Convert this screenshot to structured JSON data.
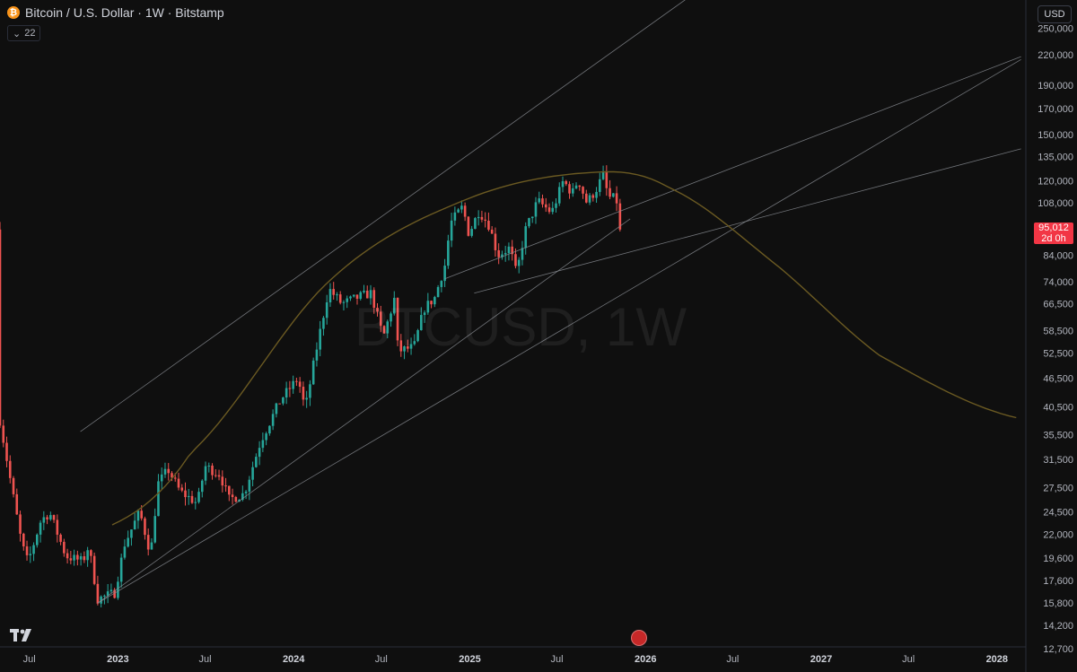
{
  "header": {
    "title": "Bitcoin / U.S. Dollar · 1W · Bitstamp",
    "indicator_count": "22",
    "currency": "USD",
    "coin_symbol": "₿"
  },
  "watermark": "BTCUSD, 1W",
  "last_price": {
    "price": "95,012",
    "countdown": "2d 0h"
  },
  "colors": {
    "background": "#0f0f0f",
    "up": "#26a69a",
    "down": "#ef5350",
    "arc": "#6b5a22",
    "trendline": "#8a8d94",
    "price_tag": "#f23645"
  },
  "chart_data": {
    "type": "candlestick",
    "title": "Bitcoin / U.S. Dollar · 1W · Bitstamp",
    "y_scale": "log",
    "ylim": [
      12000,
      280000
    ],
    "xlim": [
      "2022-05-01",
      "2028-03-01"
    ],
    "grid": false,
    "y_ticks": [
      "250,000",
      "220,000",
      "190,000",
      "170,000",
      "150,000",
      "135,000",
      "120,000",
      "108,000",
      "84,000",
      "74,000",
      "66,500",
      "58,500",
      "52,500",
      "46,500",
      "40,500",
      "35,500",
      "31,500",
      "27,500",
      "24,500",
      "22,000",
      "19,600",
      "17,600",
      "15,800",
      "14,200",
      "12,700"
    ],
    "x_ticks": [
      {
        "label": "Jul",
        "date": "2022-07-01"
      },
      {
        "label": "2023",
        "date": "2023-01-01"
      },
      {
        "label": "Jul",
        "date": "2023-07-01"
      },
      {
        "label": "2024",
        "date": "2024-01-01"
      },
      {
        "label": "Jul",
        "date": "2024-07-01"
      },
      {
        "label": "2025",
        "date": "2025-01-01"
      },
      {
        "label": "Jul",
        "date": "2025-07-01"
      },
      {
        "label": "2026",
        "date": "2026-01-01"
      },
      {
        "label": "Jul",
        "date": "2026-07-01"
      },
      {
        "label": "2027",
        "date": "2027-01-01"
      },
      {
        "label": "Jul",
        "date": "2027-07-01"
      },
      {
        "label": "2028",
        "date": "2028-01-01"
      }
    ],
    "close_anchors": [
      [
        "2022-05-01",
        38000
      ],
      [
        "2022-05-20",
        29500
      ],
      [
        "2022-06-15",
        21000
      ],
      [
        "2022-06-28",
        19200
      ],
      [
        "2022-07-25",
        23500
      ],
      [
        "2022-08-12",
        24400
      ],
      [
        "2022-09-15",
        19800
      ],
      [
        "2022-10-20",
        19300
      ],
      [
        "2022-11-01",
        20800
      ],
      [
        "2022-11-20",
        16100
      ],
      [
        "2022-12-25",
        16600
      ],
      [
        "2023-01-15",
        21000
      ],
      [
        "2023-02-15",
        24500
      ],
      [
        "2023-03-10",
        20000
      ],
      [
        "2023-03-25",
        28000
      ],
      [
        "2023-04-15",
        30000
      ],
      [
        "2023-05-10",
        27000
      ],
      [
        "2023-06-15",
        25500
      ],
      [
        "2023-07-01",
        30500
      ],
      [
        "2023-08-01",
        29300
      ],
      [
        "2023-08-20",
        26000
      ],
      [
        "2023-09-20",
        26700
      ],
      [
        "2023-10-25",
        34500
      ],
      [
        "2023-12-05",
        42000
      ],
      [
        "2024-01-10",
        46500
      ],
      [
        "2024-01-25",
        40000
      ],
      [
        "2024-02-15",
        52000
      ],
      [
        "2024-03-14",
        71500
      ],
      [
        "2024-04-10",
        66500
      ],
      [
        "2024-05-20",
        69000
      ],
      [
        "2024-06-10",
        70000
      ],
      [
        "2024-07-05",
        56500
      ],
      [
        "2024-07-28",
        68000
      ],
      [
        "2024-08-05",
        53000
      ],
      [
        "2024-09-07",
        54000
      ],
      [
        "2024-09-28",
        65000
      ],
      [
        "2024-10-20",
        68500
      ],
      [
        "2024-11-10",
        80000
      ],
      [
        "2024-11-22",
        98000
      ],
      [
        "2024-12-17",
        106000
      ],
      [
        "2024-12-30",
        93000
      ],
      [
        "2025-01-20",
        104000
      ],
      [
        "2025-02-10",
        97000
      ],
      [
        "2025-02-28",
        84000
      ],
      [
        "2025-03-25",
        87000
      ],
      [
        "2025-04-08",
        76500
      ],
      [
        "2025-04-25",
        94000
      ],
      [
        "2025-05-22",
        109000
      ],
      [
        "2025-06-20",
        103000
      ],
      [
        "2025-07-14",
        120000
      ],
      [
        "2025-08-02",
        113000
      ],
      [
        "2025-08-14",
        121000
      ],
      [
        "2025-09-01",
        108000
      ],
      [
        "2025-09-20",
        115000
      ],
      [
        "2025-10-06",
        124000
      ],
      [
        "2025-10-15",
        111000
      ],
      [
        "2025-11-01",
        110000
      ],
      [
        "2025-11-14",
        95012
      ]
    ],
    "last_close": 95012
  }
}
